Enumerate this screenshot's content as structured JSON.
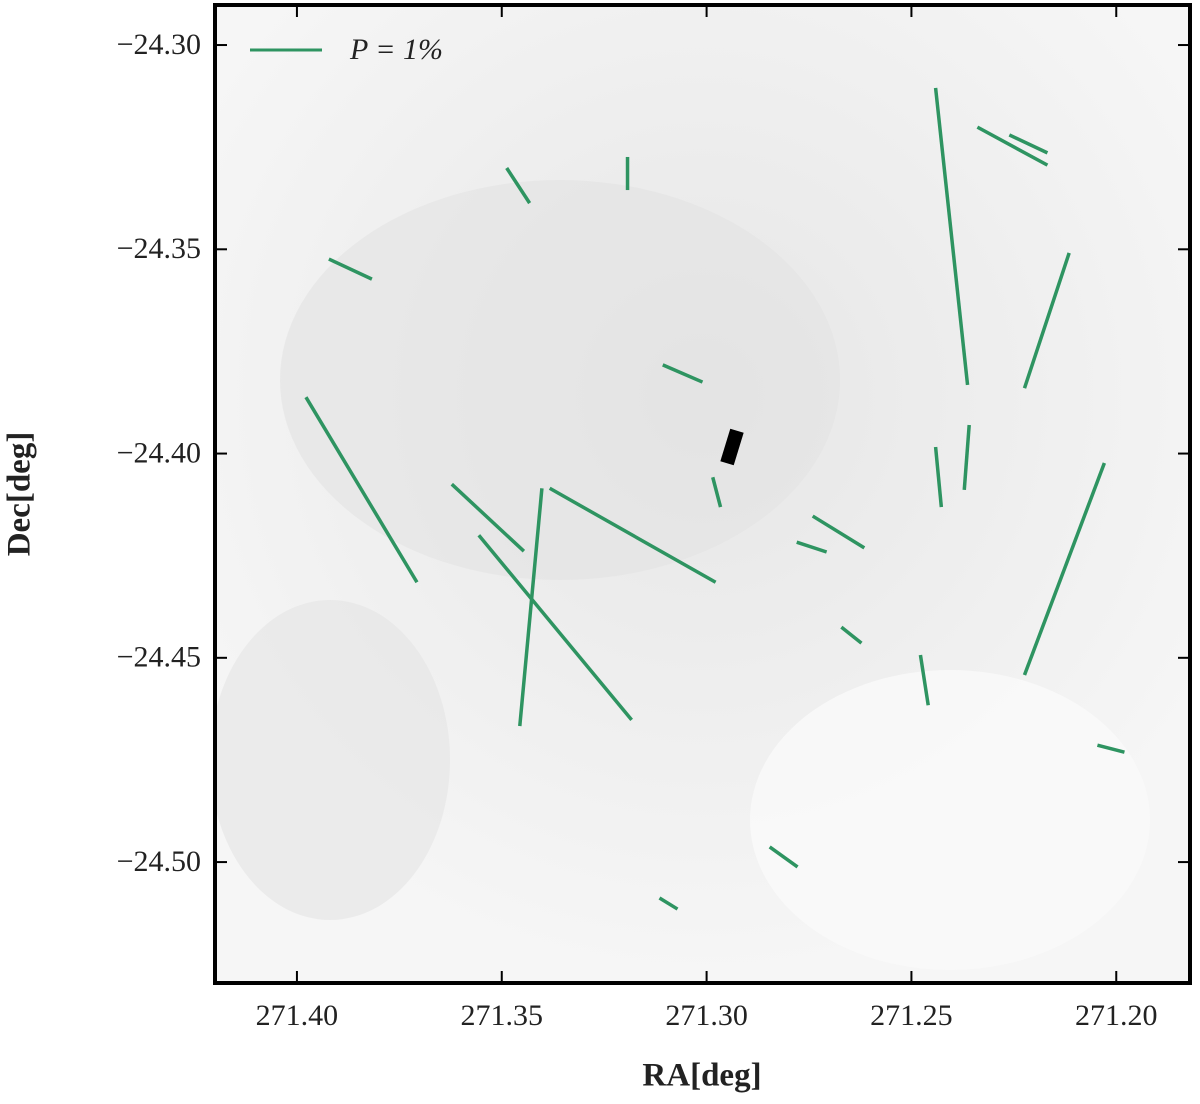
{
  "chart_data": {
    "type": "segments",
    "x_label": "RA[deg]",
    "y_label": "Dec[deg]",
    "color": "#2e9461",
    "legend": {
      "label": "P = 1%",
      "loc": "upper left"
    },
    "xlim": [
      271.42,
      271.182
    ],
    "ylim": [
      -24.2902,
      -24.5296
    ],
    "xticks": [
      {
        "value": 271.4,
        "label": "271.40"
      },
      {
        "value": 271.35,
        "label": "271.35"
      },
      {
        "value": 271.3,
        "label": "271.30"
      },
      {
        "value": 271.25,
        "label": "271.25"
      },
      {
        "value": 271.2,
        "label": "271.20"
      }
    ],
    "yticks": [
      {
        "value": -24.3,
        "label": "−24.30"
      },
      {
        "value": -24.35,
        "label": "−24.35"
      },
      {
        "value": -24.4,
        "label": "−24.40"
      },
      {
        "value": -24.45,
        "label": "−24.45"
      },
      {
        "value": -24.5,
        "label": "−24.50"
      }
    ],
    "segments": [
      {
        "x": [
          271.2441,
          271.2363
        ],
        "y": [
          -24.3105,
          -24.3832
        ]
      },
      {
        "x": [
          271.2339,
          271.2168
        ],
        "y": [
          -24.3201,
          -24.3294
        ]
      },
      {
        "x": [
          271.2261,
          271.2168
        ],
        "y": [
          -24.322,
          -24.3264
        ]
      },
      {
        "x": [
          271.2115,
          271.2224
        ],
        "y": [
          -24.3509,
          -24.384
        ]
      },
      {
        "x": [
          271.2359,
          271.2371
        ],
        "y": [
          -24.393,
          -24.4089
        ]
      },
      {
        "x": [
          271.2441,
          271.2427
        ],
        "y": [
          -24.3984,
          -24.4131
        ]
      },
      {
        "x": [
          271.2029,
          271.2224
        ],
        "y": [
          -24.4023,
          -24.4542
        ]
      },
      {
        "x": [
          271.2478,
          271.2459
        ],
        "y": [
          -24.4493,
          -24.4616
        ]
      },
      {
        "x": [
          271.2671,
          271.2622
        ],
        "y": [
          -24.4425,
          -24.4464
        ]
      },
      {
        "x": [
          271.2741,
          271.2615
        ],
        "y": [
          -24.4153,
          -24.4231
        ]
      },
      {
        "x": [
          271.278,
          271.2707
        ],
        "y": [
          -24.4217,
          -24.4241
        ]
      },
      {
        "x": [
          271.2046,
          271.198
        ],
        "y": [
          -24.4714,
          -24.4731
        ]
      },
      {
        "x": [
          271.2846,
          271.2778
        ],
        "y": [
          -24.4963,
          -24.5012
        ]
      },
      {
        "x": [
          271.3115,
          271.3071
        ],
        "y": [
          -24.5088,
          -24.5115
        ]
      },
      {
        "x": [
          271.2985,
          271.2966
        ],
        "y": [
          -24.4058,
          -24.4131
        ]
      },
      {
        "x": [
          271.3107,
          271.301
        ],
        "y": [
          -24.3783,
          -24.3825
        ]
      },
      {
        "x": [
          271.3193,
          271.3193
        ],
        "y": [
          -24.3274,
          -24.3355
        ]
      },
      {
        "x": [
          271.3488,
          271.3432
        ],
        "y": [
          -24.3301,
          -24.3387
        ]
      },
      {
        "x": [
          271.3922,
          271.3817
        ],
        "y": [
          -24.3524,
          -24.3573
        ]
      },
      {
        "x": [
          271.3978,
          271.3707
        ],
        "y": [
          -24.3862,
          -24.4315
        ]
      },
      {
        "x": [
          271.3622,
          271.3446
        ],
        "y": [
          -24.4075,
          -24.4239
        ]
      },
      {
        "x": [
          271.3556,
          271.3183
        ],
        "y": [
          -24.42,
          -24.4652
        ]
      },
      {
        "x": [
          271.3402,
          271.3456
        ],
        "y": [
          -24.4085,
          -24.4667
        ]
      },
      {
        "x": [
          271.3383,
          271.2978
        ],
        "y": [
          -24.4085,
          -24.4315
        ]
      }
    ]
  }
}
